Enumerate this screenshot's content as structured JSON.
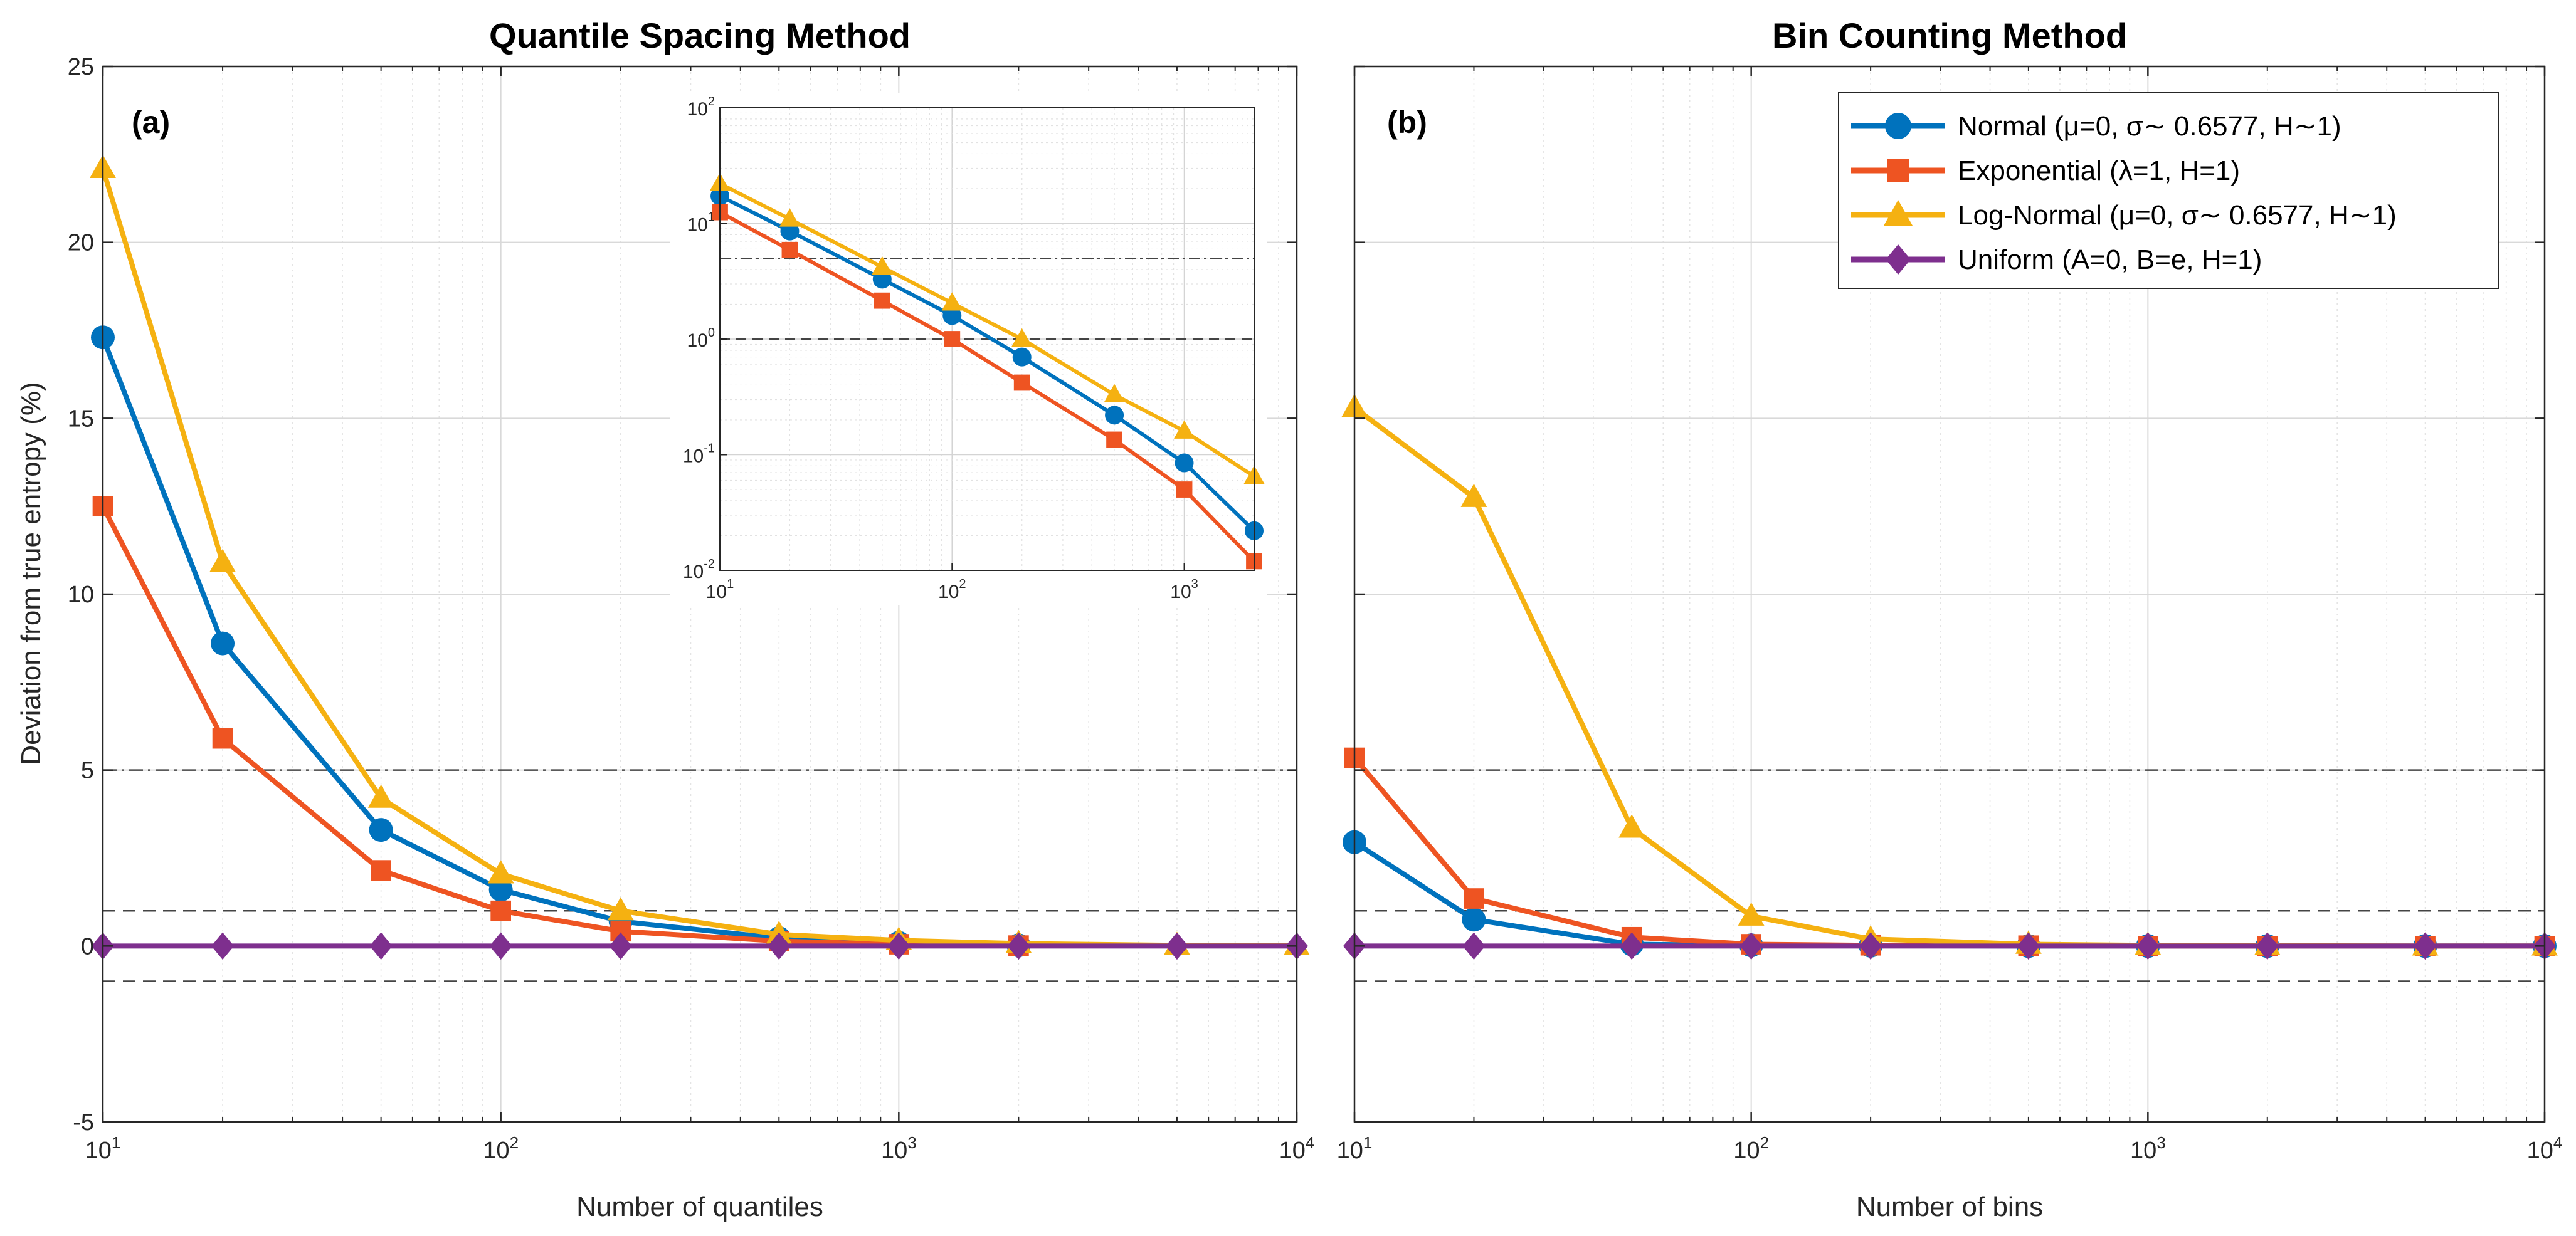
{
  "chart_data": [
    {
      "type": "line",
      "panel_label": "(a)",
      "title": "Quantile Spacing Method",
      "xlabel": "Number of quantiles",
      "ylabel": "Deviation from true entropy (%)",
      "xscale": "log",
      "xlim": [
        10,
        10000
      ],
      "ylim": [
        -5,
        25
      ],
      "yticks": [
        -5,
        0,
        5,
        10,
        15,
        20,
        25
      ],
      "xticks": [
        10,
        100,
        1000,
        10000
      ],
      "xtick_labels": [
        {
          "base": "10",
          "exp": "1"
        },
        {
          "base": "10",
          "exp": "2"
        },
        {
          "base": "10",
          "exp": "3"
        },
        {
          "base": "10",
          "exp": "4"
        }
      ],
      "reference_lines": [
        {
          "y": 5,
          "style": "dashdot"
        },
        {
          "y": -5,
          "style": "dashdot"
        },
        {
          "y": 1,
          "style": "dashed"
        },
        {
          "y": -1,
          "style": "dashed"
        }
      ],
      "x": [
        10,
        20,
        50,
        100,
        200,
        500,
        1000,
        2000,
        5000,
        10000
      ],
      "series": [
        {
          "name": "Normal",
          "values": [
            17.3,
            8.6,
            3.3,
            1.6,
            0.7,
            0.22,
            0.09,
            0.02,
            null,
            null
          ]
        },
        {
          "name": "Exponential",
          "values": [
            12.5,
            5.9,
            2.15,
            1.0,
            0.42,
            0.14,
            0.05,
            0.012,
            null,
            null
          ]
        },
        {
          "name": "Log-Normal",
          "values": [
            22.1,
            10.9,
            4.2,
            2.05,
            1.0,
            0.33,
            0.16,
            0.07,
            0.02,
            0.01
          ]
        },
        {
          "name": "Uniform",
          "values": [
            0,
            0,
            0,
            0,
            0,
            0,
            0,
            0,
            0,
            0
          ]
        }
      ],
      "inset": {
        "xscale": "log",
        "yscale": "log",
        "xlim": [
          10,
          2000
        ],
        "ylim": [
          0.01,
          100
        ],
        "xticks": [
          10,
          100,
          1000
        ],
        "xtick_labels": [
          {
            "base": "10",
            "exp": "1"
          },
          {
            "base": "10",
            "exp": "2"
          },
          {
            "base": "10",
            "exp": "3"
          }
        ],
        "yticks": [
          0.01,
          0.1,
          1,
          10,
          100
        ],
        "ytick_labels": [
          {
            "base": "10",
            "exp": "-2"
          },
          {
            "base": "10",
            "exp": "-1"
          },
          {
            "base": "10",
            "exp": "0"
          },
          {
            "base": "10",
            "exp": "1"
          },
          {
            "base": "10",
            "exp": "2"
          }
        ],
        "reference_lines": [
          {
            "y": 5,
            "style": "dashdot"
          },
          {
            "y": 1,
            "style": "dashed"
          }
        ],
        "x": [
          10,
          20,
          50,
          100,
          200,
          500,
          1000,
          2000
        ],
        "series": [
          {
            "name": "Normal",
            "values": [
              17.3,
              8.6,
              3.3,
              1.6,
              0.7,
              0.22,
              0.085,
              0.022
            ]
          },
          {
            "name": "Exponential",
            "values": [
              12.5,
              5.9,
              2.15,
              1.0,
              0.42,
              0.135,
              0.05,
              0.012
            ]
          },
          {
            "name": "Log-Normal",
            "values": [
              22.1,
              10.9,
              4.2,
              2.05,
              1.0,
              0.33,
              0.16,
              0.065
            ]
          }
        ]
      }
    },
    {
      "type": "line",
      "panel_label": "(b)",
      "title": "Bin Counting Method",
      "xlabel": "Number of bins",
      "ylabel": "",
      "xscale": "log",
      "xlim": [
        10,
        10000
      ],
      "ylim": [
        -5,
        25
      ],
      "xticks": [
        10,
        100,
        1000,
        10000
      ],
      "xtick_labels": [
        {
          "base": "10",
          "exp": "1"
        },
        {
          "base": "10",
          "exp": "2"
        },
        {
          "base": "10",
          "exp": "3"
        },
        {
          "base": "10",
          "exp": "4"
        }
      ],
      "reference_lines": [
        {
          "y": 5,
          "style": "dashdot"
        },
        {
          "y": -5,
          "style": "dashdot"
        },
        {
          "y": 1,
          "style": "dashed"
        },
        {
          "y": -1,
          "style": "dashed"
        }
      ],
      "x": [
        10,
        20,
        50,
        100,
        200,
        500,
        1000,
        2000,
        5000,
        10000
      ],
      "series": [
        {
          "name": "Normal",
          "values": [
            2.95,
            0.75,
            0.05,
            0.02,
            0.01,
            0,
            0,
            0,
            0,
            0
          ]
        },
        {
          "name": "Exponential",
          "values": [
            5.35,
            1.35,
            0.25,
            0.05,
            0.02,
            0.01,
            0,
            0,
            0,
            0
          ]
        },
        {
          "name": "Log-Normal",
          "values": [
            15.3,
            12.75,
            3.35,
            0.85,
            0.2,
            0.05,
            0.02,
            0.01,
            0,
            0
          ]
        },
        {
          "name": "Uniform",
          "values": [
            0,
            0,
            0,
            0,
            0,
            0,
            0,
            0,
            0,
            0
          ]
        }
      ]
    }
  ],
  "legend": {
    "placement": "top-right of panel (b)",
    "entries": [
      {
        "name": "Normal",
        "label": "Normal (μ=0, σ∼ 0.6577, H∼1)",
        "color": "#0072BD",
        "marker": "circle"
      },
      {
        "name": "Exponential",
        "label": "Exponential (λ=1, H=1)",
        "color": "#EE5422",
        "marker": "square"
      },
      {
        "name": "Log-Normal",
        "label": "Log-Normal (μ=0, σ∼ 0.6577, H∼1)",
        "color": "#F5B111",
        "marker": "triangle"
      },
      {
        "name": "Uniform",
        "label": "Uniform (A=0, B=e, H=1)",
        "color": "#7E2F8E",
        "marker": "diamond"
      }
    ]
  }
}
